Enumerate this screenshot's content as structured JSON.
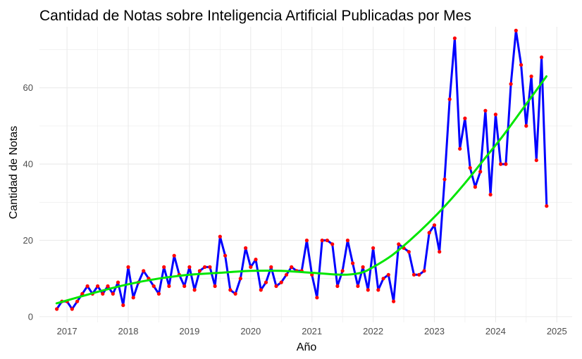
{
  "chart_data": {
    "type": "line",
    "title": "Cantidad de Notas sobre Inteligencia Artificial Publicadas por Mes",
    "xlabel": "Año",
    "ylabel": "Cantidad de Notas",
    "xlim": [
      2016.55,
      2025.25
    ],
    "ylim": [
      -1.5,
      76
    ],
    "x_ticks": [
      2017,
      2018,
      2019,
      2020,
      2021,
      2022,
      2023,
      2024,
      2025
    ],
    "y_ticks": [
      0,
      20,
      40,
      60
    ],
    "grid": true,
    "legend": "none",
    "colors": {
      "line": "#0000ff",
      "points": "#ff0000",
      "trend": "#00e600",
      "grid": "#ebebeb"
    },
    "series": [
      {
        "kind": "monthly-count",
        "x_start": "2016-11",
        "values": [
          2,
          4,
          4,
          2,
          4,
          6,
          8,
          6,
          8,
          6,
          8,
          6,
          9,
          3,
          13,
          5,
          9,
          12,
          10,
          8,
          6,
          13,
          8,
          16,
          11,
          8,
          13,
          7,
          12,
          13,
          13,
          8,
          21,
          16,
          7,
          6,
          10,
          18,
          13,
          15,
          7,
          9,
          13,
          8,
          9,
          11,
          13,
          12,
          12,
          20,
          11,
          5,
          20,
          20,
          19,
          8,
          12,
          20,
          14,
          8,
          13,
          7,
          18,
          7,
          10,
          11,
          4,
          19,
          18,
          17,
          11,
          11,
          12,
          22,
          24,
          17,
          36,
          57,
          73,
          44,
          52,
          39,
          34,
          38,
          54,
          32,
          53,
          40,
          40,
          61,
          75,
          66,
          50,
          63,
          41,
          68,
          29
        ]
      },
      {
        "kind": "trend",
        "x": [
          2016.83,
          2017.5,
          2018.0,
          2018.5,
          2019.0,
          2019.5,
          2020.0,
          2020.5,
          2021.0,
          2021.5,
          2021.8,
          2022.0,
          2022.3,
          2022.6,
          2022.9,
          2023.2,
          2023.5,
          2023.8,
          2024.1,
          2024.4,
          2024.83
        ],
        "values": [
          3.5,
          6.5,
          8.5,
          10.0,
          11.0,
          11.5,
          12.0,
          12.0,
          11.5,
          11.0,
          11.5,
          13.0,
          16.0,
          20.0,
          24.5,
          29.5,
          35.0,
          41.0,
          47.0,
          53.5,
          63.0
        ]
      }
    ]
  }
}
